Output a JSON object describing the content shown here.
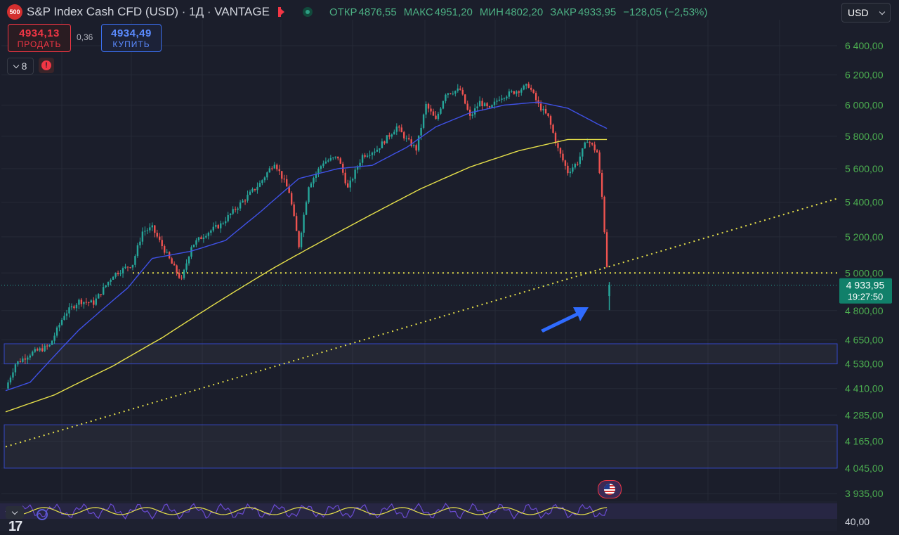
{
  "header": {
    "symbol_badge": "500",
    "title": "S&P Index Cash CFD (USD) · 1Д · VANTAGE",
    "ohlc": {
      "open_label": "ОТКР",
      "open_value": "4876,55",
      "high_label": "МАКС",
      "high_value": "4951,20",
      "low_label": "МИН",
      "low_value": "4802,20",
      "close_label": "ЗАКР",
      "close_value": "4933,95",
      "change": "−128,05 (−2,53%)"
    }
  },
  "trade": {
    "sell_price": "4934,13",
    "sell_label": "ПРОДАТЬ",
    "spread": "0,36",
    "buy_price": "4934,49",
    "buy_label": "КУПИТЬ"
  },
  "indicators": {
    "count": "8",
    "alert_icon": "!"
  },
  "currency": {
    "selected": "USD"
  },
  "price_axis": {
    "ticks": [
      "6 400,00",
      "6 200,00",
      "6 000,00",
      "5 800,00",
      "5 600,00",
      "5 400,00",
      "5 200,00",
      "5 000,00",
      "4 800,00",
      "4 650,00",
      "4 530,00",
      "4 410,00",
      "4 285,00",
      "4 165,00",
      "4 045,00",
      "3 935,00"
    ],
    "last_price": "4 933,95",
    "countdown": "19:27:50"
  },
  "oscillator": {
    "tick": "40,00"
  },
  "logo": "17",
  "colors": {
    "background": "#1b1e2b",
    "up": "#26a69a",
    "down": "#ef5350",
    "ma_fast": "#3f51e6",
    "ma_slow": "#e6e04a",
    "trend_dotted": "#e6e04a",
    "zone_border": "#3548c8",
    "axis_text": "#4caf50",
    "last_price_bg": "#11806a",
    "arrow": "#2f6bff",
    "oscillator_line": "#6a4bd1"
  },
  "chart_data": {
    "type": "candlestick",
    "title": "S&P Index Cash CFD (USD)",
    "timeframe": "1D",
    "y_axis_scale": "log",
    "ylim": [
      3900,
      6500
    ],
    "price_path": [
      [
        0,
        4410
      ],
      [
        4,
        4530
      ],
      [
        10,
        4580
      ],
      [
        18,
        4620
      ],
      [
        24,
        4780
      ],
      [
        30,
        4850
      ],
      [
        36,
        4840
      ],
      [
        44,
        4990
      ],
      [
        52,
        5050
      ],
      [
        56,
        5230
      ],
      [
        60,
        5250
      ],
      [
        68,
        5050
      ],
      [
        72,
        4960
      ],
      [
        76,
        5150
      ],
      [
        82,
        5220
      ],
      [
        88,
        5270
      ],
      [
        94,
        5360
      ],
      [
        100,
        5450
      ],
      [
        104,
        5510
      ],
      [
        110,
        5640
      ],
      [
        116,
        5460
      ],
      [
        120,
        5150
      ],
      [
        124,
        5500
      ],
      [
        130,
        5640
      ],
      [
        136,
        5670
      ],
      [
        140,
        5480
      ],
      [
        146,
        5680
      ],
      [
        152,
        5720
      ],
      [
        160,
        5860
      ],
      [
        164,
        5780
      ],
      [
        168,
        5720
      ],
      [
        172,
        6000
      ],
      [
        176,
        5900
      ],
      [
        180,
        6080
      ],
      [
        186,
        6100
      ],
      [
        190,
        5920
      ],
      [
        194,
        6020
      ],
      [
        198,
        5970
      ],
      [
        202,
        6050
      ],
      [
        210,
        6100
      ],
      [
        214,
        6130
      ],
      [
        218,
        6000
      ],
      [
        222,
        5920
      ],
      [
        226,
        5720
      ],
      [
        230,
        5580
      ],
      [
        234,
        5640
      ],
      [
        238,
        5780
      ],
      [
        242,
        5700
      ],
      [
        244,
        5430
      ],
      [
        246,
        5040
      ]
    ],
    "last_candle": {
      "open": 4876.55,
      "high": 4951.2,
      "low": 4802.2,
      "close": 4933.95
    },
    "ma_fast_path": [
      [
        0,
        4400
      ],
      [
        10,
        4440
      ],
      [
        30,
        4700
      ],
      [
        50,
        4920
      ],
      [
        60,
        5080
      ],
      [
        76,
        5120
      ],
      [
        90,
        5180
      ],
      [
        104,
        5340
      ],
      [
        120,
        5540
      ],
      [
        136,
        5600
      ],
      [
        150,
        5620
      ],
      [
        164,
        5730
      ],
      [
        176,
        5860
      ],
      [
        190,
        5950
      ],
      [
        204,
        6000
      ],
      [
        218,
        6020
      ],
      [
        230,
        5980
      ],
      [
        242,
        5880
      ],
      [
        246,
        5850
      ]
    ],
    "ma_slow_path": [
      [
        0,
        4300
      ],
      [
        20,
        4380
      ],
      [
        44,
        4520
      ],
      [
        64,
        4660
      ],
      [
        90,
        4870
      ],
      [
        110,
        5030
      ],
      [
        130,
        5180
      ],
      [
        150,
        5330
      ],
      [
        170,
        5480
      ],
      [
        190,
        5610
      ],
      [
        210,
        5710
      ],
      [
        230,
        5780
      ],
      [
        246,
        5780
      ]
    ],
    "trend_line": {
      "from": [
        0,
        4140
      ],
      "to": [
        340,
        5420
      ]
    },
    "horizontal_level": {
      "price": 5000,
      "from_x": 52
    },
    "zones": [
      [
        4530,
        4630
      ],
      [
        4045,
        4240
      ]
    ],
    "x_max_index": 340
  }
}
